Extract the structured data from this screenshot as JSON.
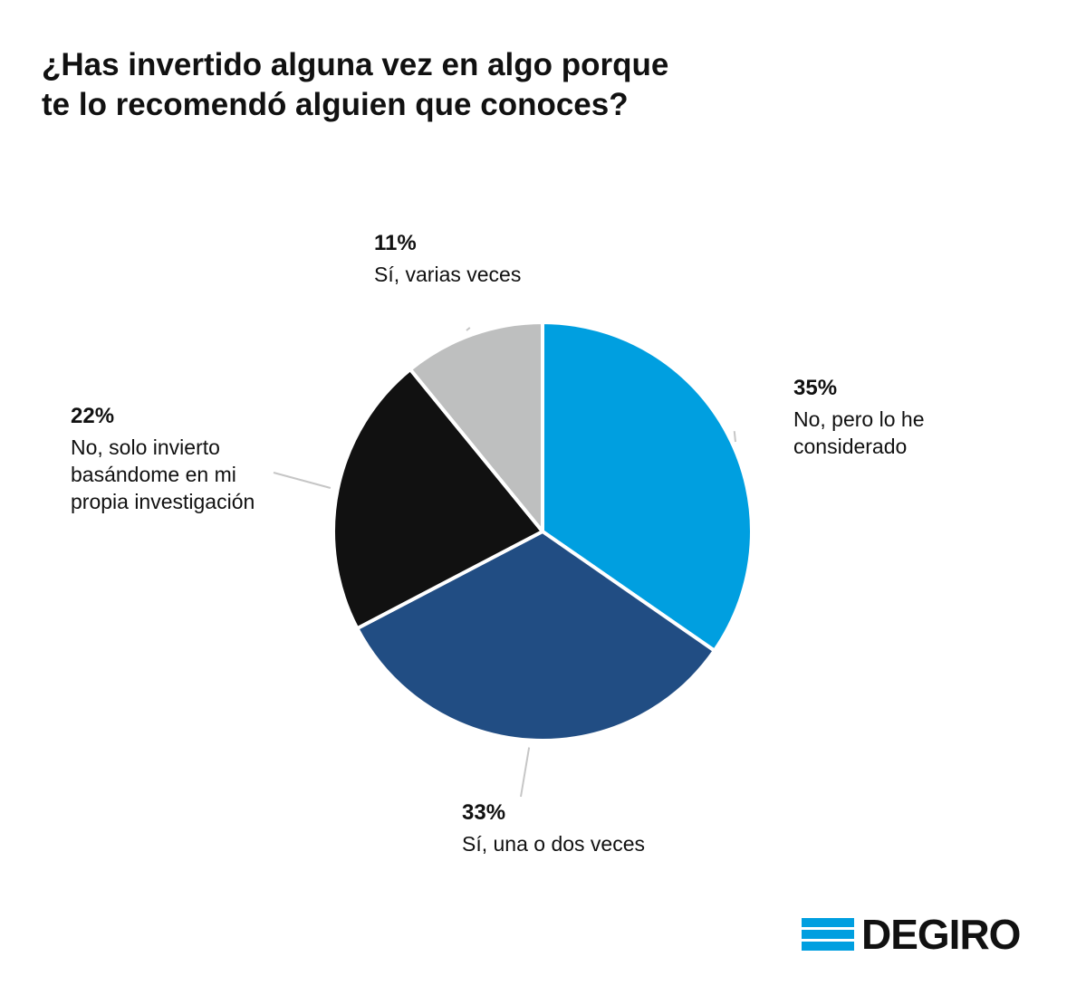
{
  "title": {
    "line1": "¿Has invertido alguna vez en algo porque",
    "line2": "te lo recomendó alguien que conoces?"
  },
  "chart_data": {
    "type": "pie",
    "start_angle_deg": 0,
    "direction": "clockwise",
    "slices": [
      {
        "value": 35,
        "percent_label": "35%",
        "label_lines": [
          "No, pero lo he",
          "considerado"
        ],
        "color": "#009FE0"
      },
      {
        "value": 33,
        "percent_label": "33%",
        "label_lines": [
          "Sí, una o dos veces"
        ],
        "color": "#214D83"
      },
      {
        "value": 22,
        "percent_label": "22%",
        "label_lines": [
          "No, solo invierto",
          "basándome en mi",
          "propia investigación"
        ],
        "color": "#111111"
      },
      {
        "value": 11,
        "percent_label": "11%",
        "label_lines": [
          "Sí, varias veces"
        ],
        "color": "#BEBFBF"
      }
    ]
  },
  "logo": {
    "text": "DEGIRO",
    "color": "#009FE0",
    "icon": "degiro-stripes-icon"
  }
}
